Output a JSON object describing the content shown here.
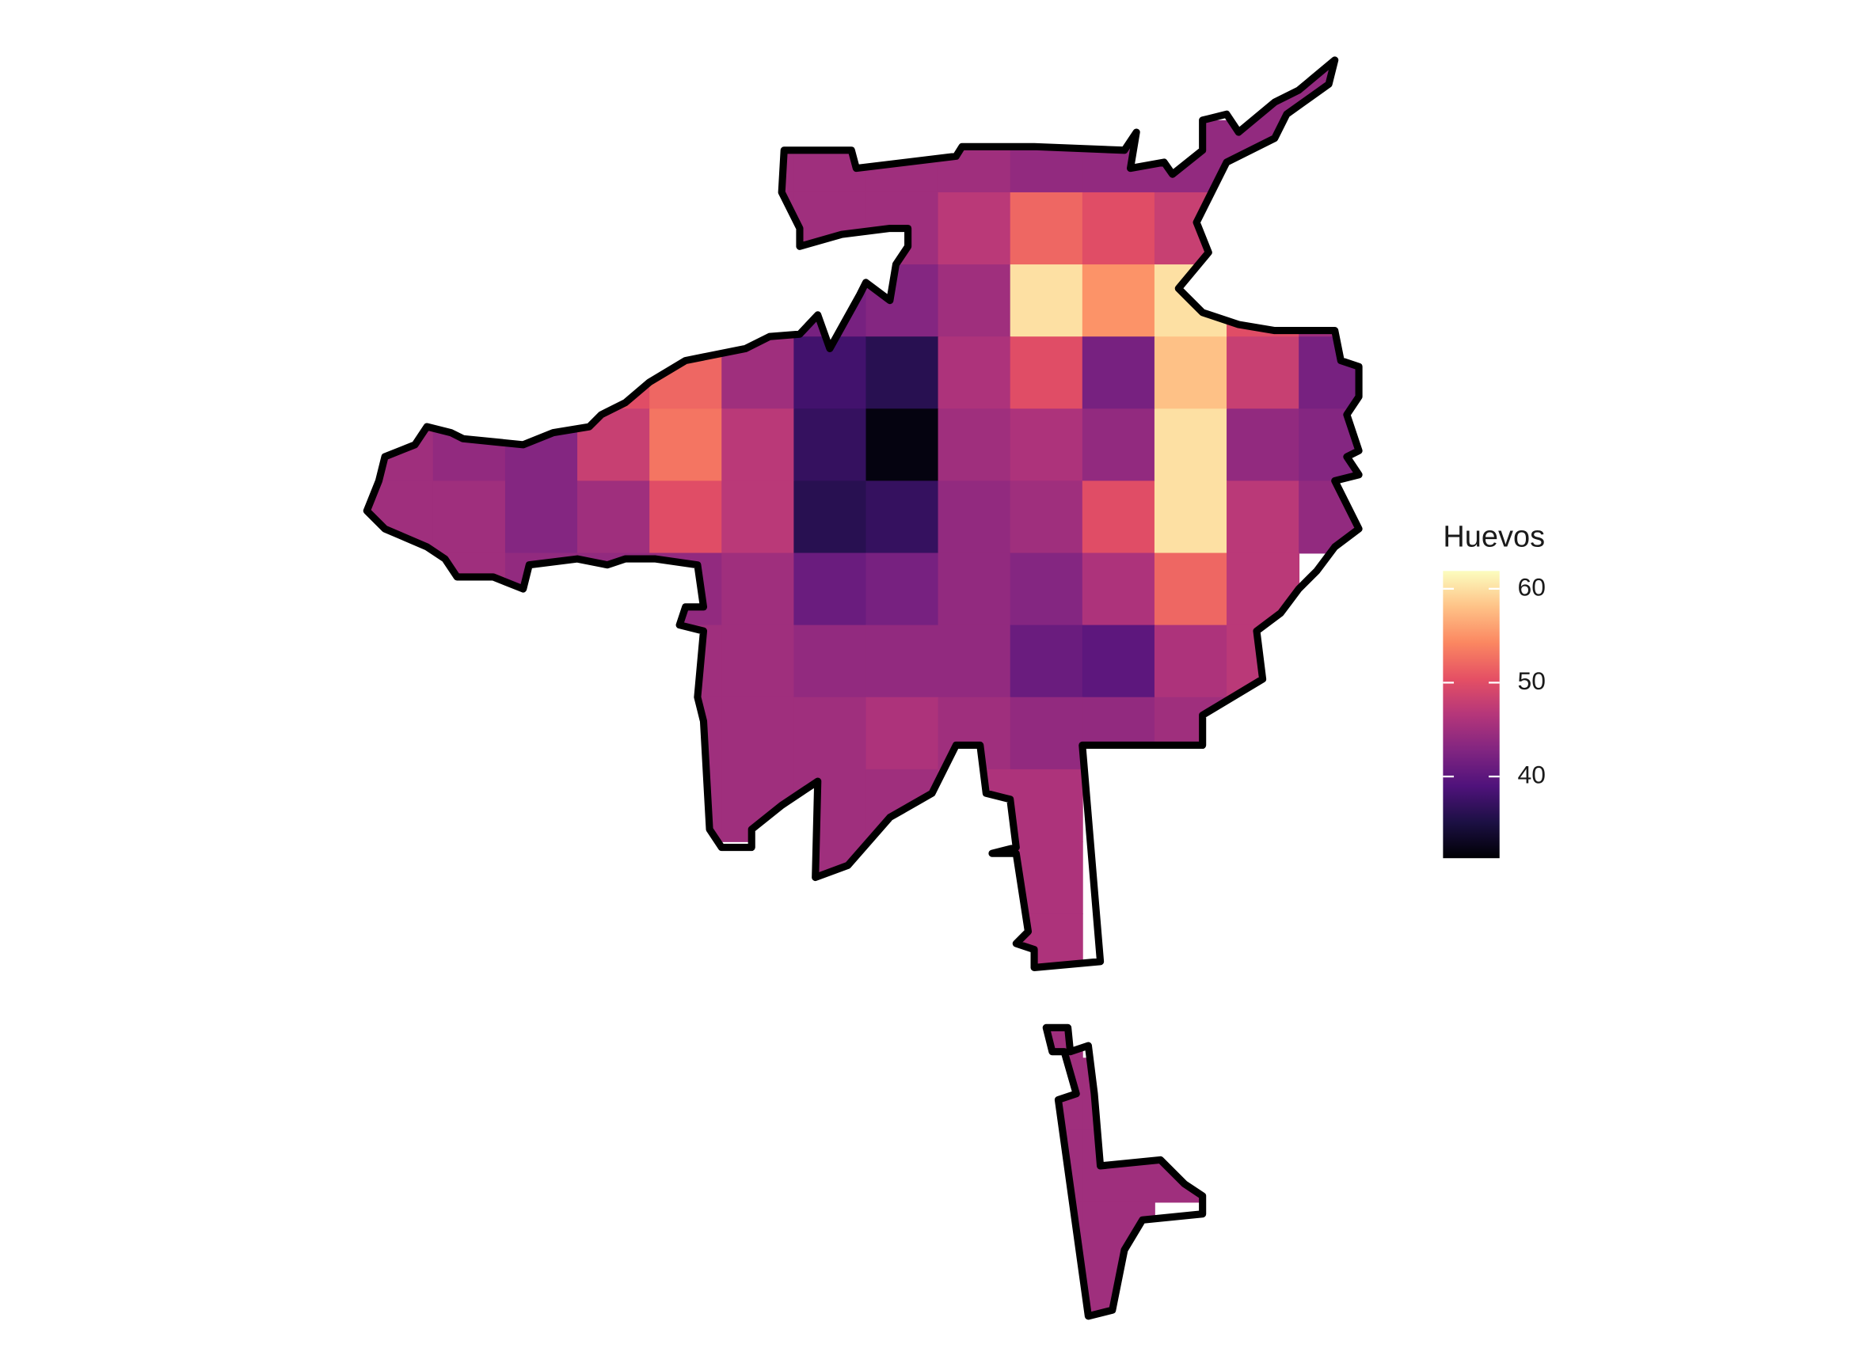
{
  "map": {
    "legend_title": "Huevos",
    "clim": [
      31.3,
      61.9
    ],
    "ticks": [
      40,
      50,
      60
    ],
    "colors": [
      "#000004",
      "#1c1044",
      "#4f127b",
      "#812581",
      "#b5367a",
      "#e55064",
      "#fb8761",
      "#fec287",
      "#fcfdbf"
    ],
    "cells": [
      [
        null,
        null,
        null,
        null,
        null,
        null,
        null,
        null,
        null,
        null,
        null,
        null,
        44,
        44
      ],
      [
        null,
        null,
        null,
        null,
        null,
        45,
        45,
        45,
        45,
        44,
        44,
        44,
        44,
        null
      ],
      [
        null,
        null,
        null,
        null,
        null,
        45,
        45,
        45,
        47,
        52,
        50,
        48,
        null,
        null
      ],
      [
        null,
        null,
        null,
        null,
        null,
        null,
        42,
        43,
        45,
        60,
        55,
        60,
        50,
        45
      ],
      [
        null,
        null,
        null,
        50,
        52,
        45,
        38,
        36,
        46,
        50,
        42,
        58,
        48,
        42
      ],
      [
        45,
        44,
        43,
        48,
        53,
        47,
        37,
        32,
        45,
        46,
        44,
        60,
        44,
        43
      ],
      [
        45,
        45,
        43,
        45,
        50,
        47,
        36,
        37,
        44,
        45,
        50,
        60,
        47,
        44
      ],
      [
        null,
        45,
        44,
        44,
        44,
        45,
        41,
        42,
        44,
        43,
        46,
        52,
        47,
        null
      ],
      [
        null,
        null,
        null,
        null,
        45,
        45,
        44,
        44,
        44,
        41,
        40,
        46,
        47,
        null
      ],
      [
        null,
        null,
        null,
        null,
        45,
        45,
        45,
        46,
        45,
        44,
        44,
        45,
        null,
        null
      ],
      [
        null,
        null,
        null,
        null,
        45,
        45,
        45,
        45,
        46,
        46,
        null,
        null,
        null,
        null
      ],
      [
        null,
        null,
        null,
        null,
        null,
        null,
        45,
        null,
        46,
        46,
        null,
        null,
        null,
        null
      ],
      [
        null,
        null,
        null,
        null,
        null,
        null,
        null,
        null,
        46,
        46,
        null,
        null,
        null,
        null
      ],
      [
        null,
        null,
        null,
        null,
        null,
        null,
        null,
        null,
        null,
        45,
        null,
        null,
        null,
        null
      ],
      [
        null,
        null,
        null,
        null,
        null,
        null,
        null,
        null,
        null,
        45,
        45,
        null,
        null,
        null
      ],
      [
        null,
        null,
        null,
        null,
        null,
        null,
        null,
        null,
        null,
        45,
        45,
        45,
        null,
        null
      ],
      [
        null,
        null,
        null,
        null,
        null,
        null,
        null,
        null,
        null,
        45,
        45,
        null,
        null,
        null
      ],
      [
        null,
        null,
        null,
        null,
        null,
        null,
        null,
        null,
        null,
        45,
        45,
        null,
        null,
        null
      ]
    ]
  }
}
